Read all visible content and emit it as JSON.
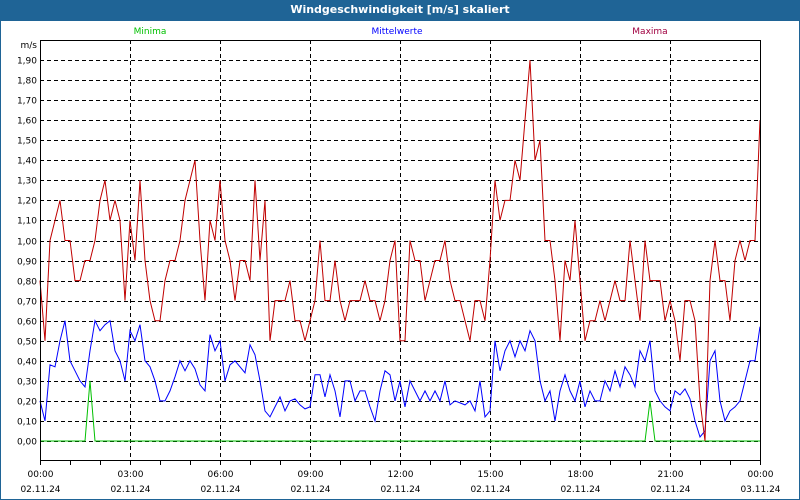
{
  "window": {
    "title": "Windgeschwindigkeit [m/s] skaliert"
  },
  "chart_data": {
    "type": "line",
    "title": "Windgeschwindigkeit [m/s] skaliert",
    "ylabel": "m/s",
    "xlabel": "",
    "ylim": [
      -0.1,
      2.0
    ],
    "xlim_hours": [
      0,
      24
    ],
    "grid": true,
    "yticks": [
      "0,00",
      "0,10",
      "0,20",
      "0,30",
      "0,40",
      "0,50",
      "0,60",
      "0,70",
      "0,80",
      "0,90",
      "1,00",
      "1,10",
      "1,20",
      "1,30",
      "1,40",
      "1,50",
      "1,60",
      "1,70",
      "1,80",
      "1,90"
    ],
    "xticks": [
      {
        "time": "00:00",
        "date": "02.11.24"
      },
      {
        "time": "03:00",
        "date": "02.11.24"
      },
      {
        "time": "06:00",
        "date": "02.11.24"
      },
      {
        "time": "09:00",
        "date": "02.11.24"
      },
      {
        "time": "12:00",
        "date": "02.11.24"
      },
      {
        "time": "15:00",
        "date": "02.11.24"
      },
      {
        "time": "18:00",
        "date": "02.11.24"
      },
      {
        "time": "21:00",
        "date": "02.11.24"
      },
      {
        "time": "00:00",
        "date": "03.11.24"
      }
    ],
    "interval_minutes": 10,
    "series": [
      {
        "name": "Minima",
        "color": "#00c000",
        "legend_color": "#00c000",
        "values": [
          0,
          0,
          0,
          0,
          0,
          0,
          0,
          0,
          0,
          0,
          0.3,
          0,
          0,
          0,
          0,
          0,
          0,
          0,
          0,
          0,
          0,
          0,
          0,
          0,
          0,
          0,
          0,
          0,
          0,
          0,
          0,
          0,
          0,
          0,
          0,
          0,
          0,
          0,
          0,
          0,
          0,
          0,
          0,
          0,
          0,
          0,
          0,
          0,
          0,
          0,
          0,
          0,
          0,
          0,
          0,
          0,
          0,
          0,
          0,
          0,
          0,
          0,
          0,
          0,
          0,
          0,
          0,
          0,
          0,
          0,
          0,
          0,
          0,
          0,
          0,
          0,
          0,
          0,
          0,
          0,
          0,
          0,
          0,
          0,
          0,
          0,
          0,
          0,
          0,
          0,
          0,
          0,
          0,
          0,
          0,
          0,
          0,
          0,
          0,
          0,
          0,
          0,
          0,
          0,
          0,
          0,
          0,
          0,
          0,
          0,
          0,
          0,
          0,
          0,
          0,
          0,
          0,
          0,
          0,
          0,
          0,
          0,
          0.2,
          0,
          0,
          0,
          0,
          0,
          0,
          0,
          0,
          0,
          0,
          0,
          0,
          0,
          0,
          0,
          0,
          0,
          0,
          0,
          0,
          0,
          0
        ]
      },
      {
        "name": "Mittelwerte",
        "color": "#0000ff",
        "legend_color": "#0000ff",
        "values": [
          0.2,
          0.1,
          0.38,
          0.37,
          0.5,
          0.6,
          0.4,
          0.35,
          0.3,
          0.27,
          0.45,
          0.6,
          0.55,
          0.58,
          0.6,
          0.45,
          0.4,
          0.3,
          0.55,
          0.5,
          0.58,
          0.4,
          0.37,
          0.3,
          0.2,
          0.2,
          0.25,
          0.32,
          0.4,
          0.35,
          0.4,
          0.36,
          0.28,
          0.25,
          0.53,
          0.45,
          0.5,
          0.3,
          0.38,
          0.4,
          0.37,
          0.34,
          0.48,
          0.43,
          0.3,
          0.15,
          0.12,
          0.17,
          0.22,
          0.15,
          0.2,
          0.21,
          0.18,
          0.16,
          0.17,
          0.33,
          0.33,
          0.22,
          0.33,
          0.25,
          0.12,
          0.3,
          0.3,
          0.2,
          0.25,
          0.25,
          0.17,
          0.1,
          0.25,
          0.35,
          0.33,
          0.2,
          0.3,
          0.17,
          0.3,
          0.25,
          0.2,
          0.25,
          0.2,
          0.25,
          0.2,
          0.3,
          0.18,
          0.2,
          0.19,
          0.18,
          0.2,
          0.15,
          0.3,
          0.12,
          0.15,
          0.5,
          0.35,
          0.45,
          0.5,
          0.42,
          0.5,
          0.45,
          0.55,
          0.5,
          0.3,
          0.2,
          0.25,
          0.1,
          0.25,
          0.33,
          0.25,
          0.2,
          0.3,
          0.17,
          0.25,
          0.2,
          0.2,
          0.3,
          0.25,
          0.35,
          0.27,
          0.37,
          0.33,
          0.27,
          0.45,
          0.4,
          0.5,
          0.25,
          0.2,
          0.17,
          0.15,
          0.25,
          0.23,
          0.26,
          0.21,
          0.1,
          0.02,
          0.05,
          0.4,
          0.45,
          0.2,
          0.1,
          0.15,
          0.17,
          0.2,
          0.3,
          0.4,
          0.4,
          0.57
        ]
      },
      {
        "name": "Maxima",
        "color": "#c00000",
        "legend_color": "#a00040",
        "values": [
          0.8,
          0.5,
          1.0,
          1.1,
          1.2,
          1.0,
          1.0,
          0.8,
          0.8,
          0.9,
          0.9,
          1.0,
          1.2,
          1.3,
          1.1,
          1.2,
          1.1,
          0.7,
          1.1,
          0.9,
          1.3,
          0.9,
          0.7,
          0.6,
          0.6,
          0.8,
          0.9,
          0.9,
          1.0,
          1.2,
          1.3,
          1.4,
          1.0,
          0.7,
          1.1,
          1.0,
          1.3,
          1.0,
          0.9,
          0.7,
          0.9,
          0.9,
          0.8,
          1.3,
          0.9,
          1.2,
          0.5,
          0.7,
          0.7,
          0.7,
          0.8,
          0.6,
          0.6,
          0.5,
          0.6,
          0.7,
          1.0,
          0.7,
          0.7,
          0.9,
          0.7,
          0.6,
          0.7,
          0.7,
          0.7,
          0.8,
          0.7,
          0.7,
          0.6,
          0.7,
          0.9,
          1.0,
          0.5,
          0.5,
          1.0,
          0.9,
          0.9,
          0.7,
          0.8,
          0.9,
          0.9,
          1.0,
          0.8,
          0.7,
          0.7,
          0.6,
          0.5,
          0.7,
          0.7,
          0.6,
          0.9,
          1.3,
          1.1,
          1.2,
          1.2,
          1.4,
          1.3,
          1.6,
          1.9,
          1.4,
          1.5,
          1.0,
          1.0,
          0.8,
          0.5,
          0.9,
          0.8,
          1.1,
          0.8,
          0.5,
          0.6,
          0.6,
          0.7,
          0.6,
          0.7,
          0.8,
          0.7,
          0.7,
          1.0,
          0.8,
          0.6,
          1.0,
          0.8,
          0.8,
          0.8,
          0.6,
          0.7,
          0.6,
          0.4,
          0.7,
          0.7,
          0.6,
          0.2,
          0.0,
          0.8,
          1.0,
          0.8,
          0.8,
          0.6,
          0.9,
          1.0,
          0.9,
          1.0,
          1.0,
          1.6
        ]
      }
    ]
  }
}
